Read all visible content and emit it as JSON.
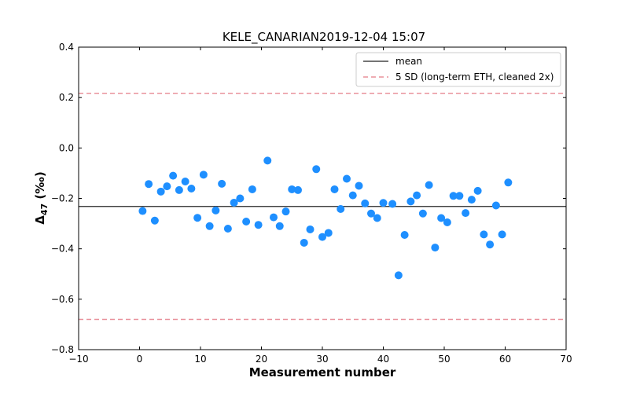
{
  "chart_data": {
    "type": "scatter",
    "title": "KELE_CANARIAN2019-12-04 15:07",
    "xlabel": "Measurement number",
    "ylabel_main": "Δ",
    "ylabel_sub": "47",
    "ylabel_unit": " (‰)",
    "xlim": [
      -10,
      70
    ],
    "ylim": [
      -0.8,
      0.4
    ],
    "xticks": [
      -10,
      0,
      10,
      20,
      30,
      40,
      50,
      60,
      70
    ],
    "xtick_labels": [
      "−10",
      "0",
      "10",
      "20",
      "30",
      "40",
      "50",
      "60",
      "70"
    ],
    "yticks": [
      -0.8,
      -0.6,
      -0.4,
      -0.2,
      0.0,
      0.2,
      0.4
    ],
    "ytick_labels": [
      "−0.8",
      "−0.6",
      "−0.4",
      "−0.2",
      "0.0",
      "0.2",
      "0.4"
    ],
    "grid": false,
    "legend_position": "top-right",
    "mean_line": {
      "label": "mean",
      "value": -0.232,
      "color": "#222222"
    },
    "sd_band": {
      "label": "5 SD (long-term ETH, cleaned 2x)",
      "upper": 0.217,
      "lower": -0.68,
      "color": "#e8909a"
    },
    "point_color": "#1e8fff",
    "series": [
      {
        "x": [
          0.5,
          1.5,
          2.5,
          3.5,
          4.5,
          5.5,
          6.5,
          7.5,
          8.5,
          9.5,
          10.5,
          11.5,
          12.5,
          13.5,
          14.5,
          15.5,
          16.5,
          17.5,
          18.5,
          19.5,
          21,
          22,
          23,
          24,
          25,
          26,
          27,
          28,
          29,
          30,
          31,
          32,
          33,
          34,
          35,
          36,
          37,
          38,
          39,
          40,
          41.5,
          42.5,
          43.5,
          44.5,
          45.5,
          46.5,
          47.5,
          48.5,
          49.5,
          50.5,
          51.5,
          52.5,
          53.5,
          54.5,
          55.5,
          56.5,
          57.5,
          58.5,
          59.5,
          60.5
        ],
        "y": [
          -0.25,
          -0.143,
          -0.288,
          -0.173,
          -0.152,
          -0.11,
          -0.167,
          -0.133,
          -0.161,
          -0.277,
          -0.106,
          -0.31,
          -0.248,
          -0.142,
          -0.32,
          -0.217,
          -0.2,
          -0.292,
          -0.164,
          -0.305,
          -0.05,
          -0.275,
          -0.31,
          -0.252,
          -0.164,
          -0.167,
          -0.376,
          -0.323,
          -0.084,
          -0.353,
          -0.337,
          -0.164,
          -0.242,
          -0.122,
          -0.188,
          -0.15,
          -0.22,
          -0.26,
          -0.278,
          -0.218,
          -0.222,
          -0.505,
          -0.345,
          -0.212,
          -0.188,
          -0.26,
          -0.147,
          -0.395,
          -0.278,
          -0.295,
          -0.19,
          -0.19,
          -0.258,
          -0.205,
          -0.17,
          -0.343,
          -0.383,
          -0.228,
          -0.343,
          -0.137
        ]
      }
    ]
  }
}
